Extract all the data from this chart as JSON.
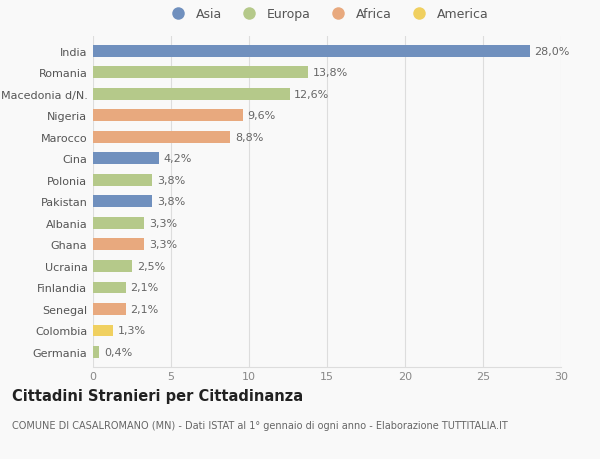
{
  "countries": [
    "India",
    "Romania",
    "Macedonia d/N.",
    "Nigeria",
    "Marocco",
    "Cina",
    "Polonia",
    "Pakistan",
    "Albania",
    "Ghana",
    "Ucraina",
    "Finlandia",
    "Senegal",
    "Colombia",
    "Germania"
  ],
  "values": [
    28.0,
    13.8,
    12.6,
    9.6,
    8.8,
    4.2,
    3.8,
    3.8,
    3.3,
    3.3,
    2.5,
    2.1,
    2.1,
    1.3,
    0.4
  ],
  "labels": [
    "28,0%",
    "13,8%",
    "12,6%",
    "9,6%",
    "8,8%",
    "4,2%",
    "3,8%",
    "3,8%",
    "3,3%",
    "3,3%",
    "2,5%",
    "2,1%",
    "2,1%",
    "1,3%",
    "0,4%"
  ],
  "continents": [
    "Asia",
    "Europa",
    "Europa",
    "Africa",
    "Africa",
    "Asia",
    "Europa",
    "Asia",
    "Europa",
    "Africa",
    "Europa",
    "Europa",
    "Africa",
    "America",
    "Europa"
  ],
  "colors": {
    "Asia": "#7090be",
    "Europa": "#b5c98a",
    "Africa": "#e8a97e",
    "America": "#f0d060"
  },
  "legend_order": [
    "Asia",
    "Europa",
    "Africa",
    "America"
  ],
  "xlim": [
    0,
    30
  ],
  "xticks": [
    0,
    5,
    10,
    15,
    20,
    25,
    30
  ],
  "title": "Cittadini Stranieri per Cittadinanza",
  "subtitle": "COMUNE DI CASALROMANO (MN) - Dati ISTAT al 1° gennaio di ogni anno - Elaborazione TUTTITALIA.IT",
  "background_color": "#f9f9f9",
  "bar_height": 0.55,
  "grid_color": "#dddddd",
  "label_fontsize": 8,
  "tick_fontsize": 8,
  "title_fontsize": 10.5,
  "subtitle_fontsize": 7
}
